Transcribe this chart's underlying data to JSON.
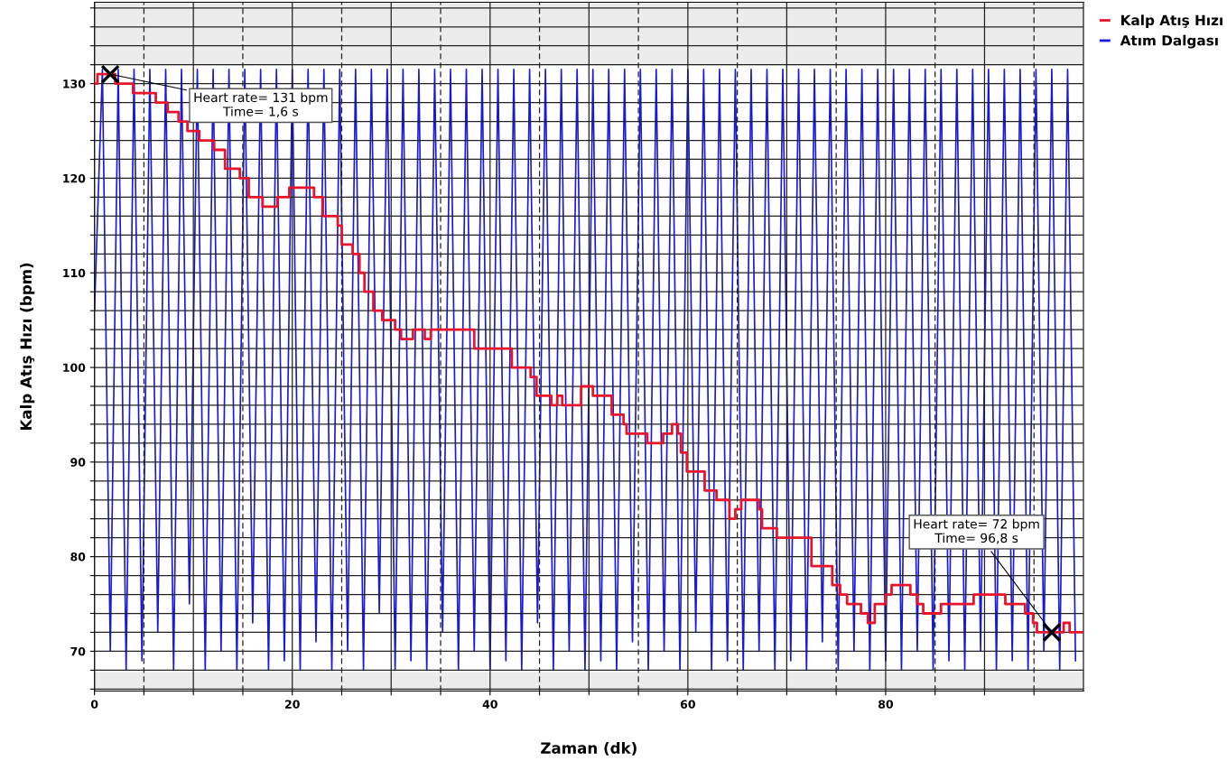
{
  "chart_data": {
    "type": "line",
    "xlabel": "Zaman (dk)",
    "ylabel": "Kalp Atış Hızı (bpm)",
    "xlim": [
      0,
      100
    ],
    "ylim": [
      65.8,
      138.6
    ],
    "xticks": [
      0,
      {
        "value": 5,
        "label": null
      },
      {
        "value": 10,
        "label": null
      },
      {
        "value": 15,
        "label": null
      },
      20,
      {
        "value": 25,
        "label": null
      },
      {
        "value": 30,
        "label": null
      },
      {
        "value": 35,
        "label": null
      },
      40,
      {
        "value": 45,
        "label": null
      },
      {
        "value": 50,
        "label": null
      },
      {
        "value": 55,
        "label": null
      },
      60,
      {
        "value": 65,
        "label": null
      },
      {
        "value": 70,
        "label": null
      },
      {
        "value": 75,
        "label": null
      },
      80,
      {
        "value": 85,
        "label": null
      },
      {
        "value": 90,
        "label": null
      },
      {
        "value": 95,
        "label": null
      }
    ],
    "yticks": [
      {
        "value": 66,
        "label": null
      },
      {
        "value": 68,
        "label": null
      },
      70,
      {
        "value": 72,
        "label": null
      },
      {
        "value": 74,
        "label": null
      },
      {
        "value": 76,
        "label": null
      },
      {
        "value": 78,
        "label": null
      },
      80,
      {
        "value": 82,
        "label": null
      },
      {
        "value": 84,
        "label": null
      },
      {
        "value": 86,
        "label": null
      },
      {
        "value": 88,
        "label": null
      },
      90,
      {
        "value": 92,
        "label": null
      },
      {
        "value": 94,
        "label": null
      },
      {
        "value": 96,
        "label": null
      },
      {
        "value": 98,
        "label": null
      },
      100,
      {
        "value": 102,
        "label": null
      },
      {
        "value": 104,
        "label": null
      },
      {
        "value": 106,
        "label": null
      },
      {
        "value": 108,
        "label": null
      },
      110,
      {
        "value": 112,
        "label": null
      },
      {
        "value": 114,
        "label": null
      },
      {
        "value": 116,
        "label": null
      },
      {
        "value": 118,
        "label": null
      },
      120,
      {
        "value": 122,
        "label": null
      },
      {
        "value": 124,
        "label": null
      },
      {
        "value": 126,
        "label": null
      },
      {
        "value": 128,
        "label": null
      },
      130,
      {
        "value": 132,
        "label": null
      },
      {
        "value": 134,
        "label": null
      },
      {
        "value": 136,
        "label": null
      },
      {
        "value": 138,
        "label": null
      }
    ],
    "grid": true,
    "legend": "top right",
    "bands": [
      {
        "axis": "y",
        "from": 65.8,
        "to": 67.8,
        "color": "#ececec"
      },
      {
        "axis": "y",
        "from": 131.9,
        "to": 138.6,
        "color": "#ececec"
      }
    ],
    "series": [
      {
        "name": "Atım Dalgası",
        "color": "#1a1ad6",
        "x": [
          0,
          0.8,
          1.6,
          2.4,
          3.2,
          4.0,
          4.8,
          5.6,
          6.4,
          7.2,
          8.0,
          8.8,
          9.6,
          10.4,
          11.2,
          12.0,
          12.8,
          13.6,
          14.4,
          15.2,
          16.0,
          16.8,
          17.6,
          18.4,
          19.2,
          20.0,
          20.8,
          21.6,
          22.4,
          23.2,
          24.0,
          24.8,
          25.6,
          26.4,
          27.2,
          28.0,
          28.8,
          29.6,
          30.4,
          31.2,
          32.0,
          32.8,
          33.6,
          34.4,
          35.2,
          36.0,
          36.8,
          37.6,
          38.4,
          39.2,
          40.0,
          40.8,
          41.6,
          42.4,
          43.2,
          44.0,
          44.8,
          45.6,
          46.4,
          47.2,
          48.0,
          48.8,
          49.6,
          50.4,
          51.2,
          52.0,
          52.8,
          53.6,
          54.4,
          55.2,
          56.0,
          56.8,
          57.6,
          58.4,
          59.2,
          60.0,
          60.8,
          61.6,
          62.4,
          63.2,
          64.0,
          64.8,
          65.6,
          66.4,
          67.2,
          68.0,
          68.8,
          69.6,
          70.4,
          71.2,
          72.0,
          72.8,
          73.6,
          74.4,
          75.2,
          76.0,
          76.8,
          77.6,
          78.4,
          79.2,
          80.0,
          80.8,
          81.6,
          82.4,
          83.2,
          84.0,
          84.8,
          85.6,
          86.4,
          87.2,
          88.0,
          88.8,
          89.6,
          90.4,
          91.2,
          92.0,
          92.8,
          93.6,
          94.4,
          95.2,
          96.0,
          96.8,
          97.6,
          98.4,
          99.2
        ],
        "values": [
          106,
          131.5,
          70,
          131.5,
          68,
          131.5,
          69,
          131.5,
          72,
          131.5,
          68,
          131.5,
          75,
          131.5,
          68,
          131.5,
          70,
          131.5,
          68,
          131.5,
          73,
          131.5,
          68,
          131.5,
          69,
          131.5,
          68,
          131.5,
          71,
          131.5,
          68,
          131.5,
          70,
          131.5,
          68,
          131.5,
          74,
          131.5,
          68,
          131.5,
          69,
          131.5,
          68,
          131.5,
          72,
          131.5,
          68,
          131.5,
          70,
          131.5,
          68,
          131.5,
          69,
          131.5,
          68,
          131.5,
          73,
          131.5,
          68,
          131.5,
          70,
          131.5,
          68,
          131.5,
          69,
          131.5,
          68,
          131.5,
          71,
          131.5,
          68,
          131.5,
          70,
          131.5,
          68,
          131.5,
          72,
          131.5,
          68,
          131.5,
          69,
          131.5,
          68,
          131.5,
          70,
          131.5,
          68,
          131.5,
          69,
          131.5,
          68,
          131.5,
          71,
          131.5,
          68,
          131.5,
          70,
          131.5,
          68,
          131.5,
          69,
          131.5,
          68,
          131.5,
          70,
          131.5,
          68,
          131.5,
          69,
          131.5,
          68,
          131.5,
          70,
          131.5,
          68,
          131.5,
          69,
          131.5,
          68,
          131.5,
          70,
          131.5,
          68,
          131.5,
          69
        ]
      },
      {
        "name": "Kalp Atış Hızı",
        "color": "#e8142a",
        "type": "step",
        "x": [
          0,
          0.3,
          2.1,
          3.9,
          6.2,
          7.4,
          8.5,
          9.4,
          10.6,
          12.1,
          13.2,
          14.7,
          15.6,
          17,
          18.5,
          19.7,
          22.2,
          23.1,
          24.6,
          25,
          26.1,
          26.8,
          27.3,
          28.2,
          29.1,
          30.4,
          31,
          32.2,
          33.4,
          34,
          38.4,
          42.2,
          44.1,
          44.7,
          46.2,
          46.8,
          47.3,
          49.2,
          50.4,
          52.3,
          53.5,
          53.8,
          55.9,
          57.5,
          58.4,
          59,
          59.3,
          59.9,
          61.7,
          62.9,
          64.2,
          64.8,
          65.4,
          67.2,
          67.5,
          69,
          72.5,
          74.6,
          75.4,
          76.1,
          77.5,
          78.2,
          78.9,
          80,
          80.6,
          82.5,
          83.2,
          83.8,
          85.6,
          88.9,
          92.1,
          94.1,
          94.9,
          95.3,
          98,
          98.6,
          100
        ],
        "values": [
          130,
          131,
          130,
          129,
          128,
          127,
          126,
          125,
          124,
          123,
          121,
          120,
          118,
          117,
          118,
          119,
          118,
          116,
          115,
          113,
          112,
          110,
          108,
          106,
          105,
          104,
          103,
          104,
          103,
          104,
          102,
          100,
          99,
          97,
          96,
          97,
          96,
          98,
          97,
          95,
          94,
          93,
          92,
          93,
          94,
          93,
          91,
          89,
          87,
          86,
          84,
          85,
          86,
          85,
          83,
          82,
          79,
          77,
          76,
          75,
          74,
          73,
          75,
          76,
          77,
          76,
          75,
          74,
          75,
          76,
          75,
          74,
          73,
          72,
          73,
          72,
          72
        ]
      }
    ],
    "annotations": [
      {
        "text": "Heart rate= 131 bpm\nTime= 1,6 s",
        "x": 1.6,
        "y": 131
      },
      {
        "text": "Heart rate= 72 bpm\nTime= 96,8 s",
        "x": 96.8,
        "y": 72
      }
    ]
  }
}
